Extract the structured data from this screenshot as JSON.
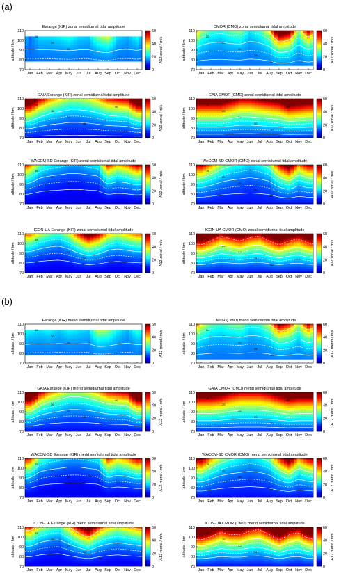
{
  "sections": [
    {
      "label": "(a)"
    },
    {
      "label": "(b)"
    }
  ],
  "months": [
    "Jan",
    "Feb",
    "Mar",
    "Apr",
    "May",
    "Jun",
    "Jul",
    "Aug",
    "Sep",
    "Oct",
    "Nov",
    "Dec"
  ],
  "yticks": [
    70,
    80,
    90,
    100,
    110
  ],
  "cbar_ticks": [
    0,
    20,
    40,
    60
  ],
  "colormap": [
    "#00008f",
    "#0000ff",
    "#0080ff",
    "#00ffff",
    "#80ff80",
    "#ffff00",
    "#ff8000",
    "#ff0000",
    "#800000"
  ],
  "chart_data": [
    {
      "type": "heatmap",
      "title": "Esrange (KIR) zonal semidiurnal tidal amplitude",
      "ylabel": "altitude / km",
      "cbar_label": "A12 zonal / m/s",
      "ylim": [
        70,
        110
      ],
      "clim": [
        0,
        60
      ],
      "base": 14,
      "grad": 0.16,
      "peak": [
        0,
        0.5,
        0.5,
        0.6,
        0.8,
        0.5,
        0.4,
        1.2,
        1.6,
        0.5,
        0.3,
        0.7
      ],
      "valid_alt": [
        78,
        104
      ],
      "contours": [
        15,
        20,
        25
      ]
    },
    {
      "type": "heatmap",
      "title": "CMOR (CMO) zonal semidiurnal tidal amplitude",
      "ylabel": "altitude / km",
      "cbar_label": "A12 zonal / m/s",
      "ylim": [
        70,
        110
      ],
      "clim": [
        0,
        60
      ],
      "base": 14,
      "grad": 0.3,
      "peak": [
        0.8,
        0.5,
        0.4,
        0.6,
        0.7,
        0.3,
        0.5,
        1.0,
        2.6,
        2.2,
        0.7,
        1.8
      ],
      "valid_alt": [
        75,
        110
      ],
      "contours": [
        20,
        25,
        30,
        35,
        40
      ]
    },
    {
      "type": "heatmap",
      "title": "GAIA Esrange (KIR) zonal semidiurnal tidal amplitude",
      "ylabel": "altitude / km",
      "cbar_label": "A12 zonal / m/s",
      "ylim": [
        70,
        110
      ],
      "clim": [
        0,
        60
      ],
      "base": 8,
      "grad": 0.6,
      "peak": [
        2.4,
        1.6,
        1.2,
        1.0,
        0.8,
        0.8,
        0.9,
        1.1,
        1.4,
        1.5,
        1.6,
        2.4
      ],
      "valid_alt": [
        70,
        110
      ],
      "contours": [
        10,
        15,
        20,
        25,
        30,
        40
      ]
    },
    {
      "type": "heatmap",
      "title": "GAIA CMOR (CMO) zonal semidiurnal tidal amplitude",
      "ylabel": "altitude / km",
      "cbar_label": "A12 zonal / m/s",
      "ylim": [
        70,
        110
      ],
      "clim": [
        0,
        60
      ],
      "base": 10,
      "grad": 1.0,
      "peak": [
        1.6,
        1.6,
        1.6,
        1.4,
        1.2,
        1.2,
        1.3,
        1.4,
        1.5,
        1.8,
        1.7,
        1.6
      ],
      "valid_alt": [
        70,
        110
      ],
      "contours": [
        15,
        20,
        25,
        30,
        35,
        40
      ]
    },
    {
      "type": "heatmap",
      "title": "WACCM-SD Esrange (KIR) zonal semidiurnal tidal amplitude",
      "ylabel": "altitude / km",
      "cbar_label": "A12 zonal / m/s",
      "ylim": [
        70,
        110
      ],
      "clim": [
        0,
        60
      ],
      "base": 6,
      "grad": 0.5,
      "peak": [
        1.4,
        0.8,
        0.6,
        0.5,
        0.4,
        0.4,
        0.5,
        0.6,
        1.6,
        1.2,
        1.4,
        1.8
      ],
      "valid_alt": [
        70,
        110
      ],
      "contours": [
        15,
        20,
        25,
        30
      ]
    },
    {
      "type": "heatmap",
      "title": "WACCM-SD CMOR (CMO) zonal semidiurnal tidal amplitude",
      "ylabel": "altitude / km",
      "cbar_label": "A12 zonal / m/s",
      "ylim": [
        70,
        110
      ],
      "clim": [
        0,
        60
      ],
      "base": 8,
      "grad": 0.6,
      "peak": [
        1.6,
        1.2,
        0.8,
        0.6,
        0.5,
        0.4,
        0.5,
        0.7,
        1.5,
        2.0,
        1.2,
        1.6
      ],
      "valid_alt": [
        70,
        110
      ],
      "contours": [
        15,
        20,
        25,
        30,
        35
      ]
    },
    {
      "type": "heatmap",
      "title": "ICON-UA Esrange (KIR) zonal semidiurnal tidal amplitude",
      "ylabel": "altitude / km",
      "cbar_label": "A12 zonal / m/s",
      "ylim": [
        70,
        110
      ],
      "clim": [
        0,
        60
      ],
      "base": 6,
      "grad": 0.5,
      "peak": [
        1.4,
        1.0,
        0.8,
        0.7,
        1.0,
        1.6,
        2.2,
        1.8,
        1.2,
        1.0,
        1.2,
        1.4
      ],
      "valid_alt": [
        70,
        110
      ],
      "contours": [
        15,
        20,
        25,
        30
      ]
    },
    {
      "type": "heatmap",
      "title": "ICON-UA CMOR (CMO) zonal semidiurnal tidal amplitude",
      "ylabel": "altitude / km",
      "cbar_label": "A12 zonal / m/s",
      "ylim": [
        70,
        110
      ],
      "clim": [
        0,
        60
      ],
      "base": 8,
      "grad": 0.8,
      "peak": [
        2.2,
        1.8,
        1.4,
        1.6,
        1.8,
        1.5,
        1.4,
        1.8,
        2.2,
        1.8,
        1.6,
        2.0
      ],
      "valid_alt": [
        70,
        110
      ],
      "contours": [
        20,
        25,
        30,
        35,
        40,
        50
      ]
    },
    {
      "type": "heatmap",
      "title": "Esrange (KIR) merid semidiurnal tidal amplitude",
      "ylabel": "altitude / km",
      "cbar_label": "A12 merid / m/s",
      "ylim": [
        70,
        110
      ],
      "clim": [
        0,
        60
      ],
      "base": 14,
      "grad": 0.2,
      "peak": [
        0.6,
        0.5,
        0.6,
        0.4,
        0.6,
        0.5,
        0.4,
        1.4,
        1.2,
        0.6,
        0.3,
        0.8
      ],
      "valid_alt": [
        78,
        104
      ],
      "contours": [
        15,
        20,
        25
      ]
    },
    {
      "type": "heatmap",
      "title": "CMOR (CMO) merid semidiurnal tidal amplitude",
      "ylabel": "altitude / km",
      "cbar_label": "A12 merid / m/s",
      "ylim": [
        70,
        110
      ],
      "clim": [
        0,
        60
      ],
      "base": 14,
      "grad": 0.28,
      "peak": [
        1.0,
        0.6,
        0.5,
        0.6,
        0.7,
        0.4,
        0.5,
        0.9,
        2.0,
        1.6,
        0.8,
        1.8
      ],
      "valid_alt": [
        75,
        110
      ],
      "contours": [
        20,
        25,
        30,
        35,
        40
      ]
    },
    {
      "type": "heatmap",
      "title": "GAIA Esrange (KIR) merid semidiurnal tidal amplitude",
      "ylabel": "altitude / km",
      "cbar_label": "A12 merid / m/s",
      "ylim": [
        70,
        110
      ],
      "clim": [
        0,
        60
      ],
      "base": 8,
      "grad": 0.6,
      "peak": [
        2.6,
        1.6,
        1.2,
        1.0,
        0.8,
        0.8,
        0.9,
        1.1,
        1.4,
        1.5,
        1.6,
        2.6
      ],
      "valid_alt": [
        70,
        110
      ],
      "contours": [
        15,
        20,
        25,
        30,
        35,
        40
      ]
    },
    {
      "type": "heatmap",
      "title": "GAIA CMOR (CMO) merid semidiurnal tidal amplitude",
      "ylabel": "altitude / km",
      "cbar_label": "A12 merid / m/s",
      "ylim": [
        70,
        110
      ],
      "clim": [
        0,
        60
      ],
      "base": 10,
      "grad": 1.0,
      "peak": [
        1.6,
        1.6,
        1.5,
        1.3,
        1.2,
        1.2,
        1.2,
        1.3,
        1.5,
        1.7,
        1.6,
        1.6
      ],
      "valid_alt": [
        70,
        110
      ],
      "contours": [
        15,
        20,
        25,
        30,
        35,
        40
      ]
    },
    {
      "type": "heatmap",
      "title": "WACCM-SD Esrange (KIR) merid semidiurnal tidal amplitude",
      "ylabel": "altitude / km",
      "cbar_label": "A12 merid / m/s",
      "ylim": [
        70,
        110
      ],
      "clim": [
        0,
        60
      ],
      "base": 6,
      "grad": 0.5,
      "peak": [
        1.6,
        0.8,
        0.6,
        0.5,
        0.4,
        0.4,
        0.5,
        0.6,
        1.6,
        1.2,
        1.4,
        1.8
      ],
      "valid_alt": [
        70,
        110
      ],
      "contours": [
        15,
        20,
        25,
        30
      ]
    },
    {
      "type": "heatmap",
      "title": "WACCM-SD CMOR (CMO) merid semidiurnal tidal amplitude",
      "ylabel": "altitude / km",
      "cbar_label": "A12 merid / m/s",
      "ylim": [
        70,
        110
      ],
      "clim": [
        0,
        60
      ],
      "base": 8,
      "grad": 0.6,
      "peak": [
        1.8,
        1.2,
        0.8,
        0.6,
        0.5,
        0.4,
        0.5,
        0.7,
        1.4,
        2.0,
        1.2,
        1.6
      ],
      "valid_alt": [
        70,
        110
      ],
      "contours": [
        15,
        20,
        25,
        30,
        35
      ]
    },
    {
      "type": "heatmap",
      "title": "ICON-UA Esrange (KIR) merid semidiurnal tidal amplitude",
      "ylabel": "altitude / km",
      "cbar_label": "A12 merid / m/s",
      "ylim": [
        70,
        110
      ],
      "clim": [
        0,
        60
      ],
      "base": 6,
      "grad": 0.5,
      "peak": [
        1.6,
        1.0,
        0.8,
        0.7,
        1.2,
        1.8,
        2.4,
        1.6,
        1.2,
        1.0,
        1.2,
        1.4
      ],
      "valid_alt": [
        70,
        110
      ],
      "contours": [
        15,
        20,
        25,
        30,
        40
      ]
    },
    {
      "type": "heatmap",
      "title": "ICON-UA CMOR (CMO) merid semidiurnal tidal amplitude",
      "ylabel": "altitude / km",
      "cbar_label": "A12 merid / m/s",
      "ylim": [
        70,
        110
      ],
      "clim": [
        0,
        60
      ],
      "base": 8,
      "grad": 0.8,
      "peak": [
        2.4,
        2.0,
        1.6,
        1.8,
        1.8,
        1.5,
        1.4,
        1.8,
        2.4,
        1.8,
        1.6,
        2.2
      ],
      "valid_alt": [
        70,
        110
      ],
      "contours": [
        20,
        25,
        30,
        35,
        40,
        50
      ]
    }
  ]
}
